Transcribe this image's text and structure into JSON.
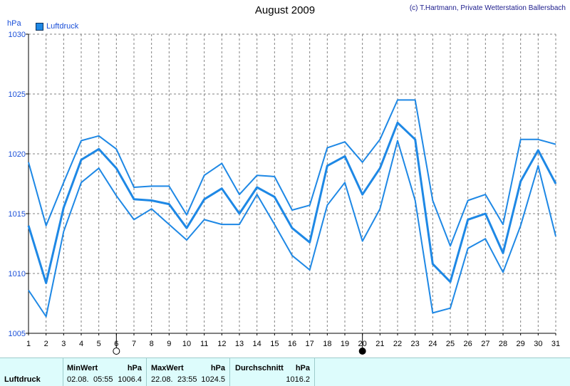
{
  "header": {
    "title": "August 2009",
    "copyright": "(c) T.Hartmann, Private Wetterstation Ballersbach",
    "unit": "hPa",
    "legend_label": "Luftdruck"
  },
  "colors": {
    "series": "#1e88e5",
    "grid": "#808080",
    "stats_bg": "#ddfcfc"
  },
  "moon_phases": [
    {
      "day": 6,
      "phase": "full-moon"
    },
    {
      "day": 20,
      "phase": "new-moon"
    }
  ],
  "chart_data": {
    "type": "line",
    "title": "August 2009",
    "ylabel": "hPa",
    "x": [
      1,
      2,
      3,
      4,
      5,
      6,
      7,
      8,
      9,
      10,
      11,
      12,
      13,
      14,
      15,
      16,
      17,
      18,
      19,
      20,
      21,
      22,
      23,
      24,
      25,
      26,
      27,
      28,
      29,
      30,
      31
    ],
    "x_tick_labels": [
      "1",
      "2",
      "3",
      "4",
      "5",
      "6",
      "7",
      "8",
      "9",
      "10",
      "11",
      "12",
      "13",
      "14",
      "15",
      "16",
      "17",
      "18",
      "19",
      "20",
      "21",
      "22",
      "23",
      "24",
      "25",
      "26",
      "27",
      "28",
      "29",
      "30",
      "31"
    ],
    "ylim": [
      1005,
      1030
    ],
    "y_ticks": [
      1005,
      1010,
      1015,
      1020,
      1025,
      1030
    ],
    "grid": true,
    "legend": "top-left",
    "series": [
      {
        "name": "Luftdruck",
        "role": "max",
        "values": [
          1019.3,
          1014.0,
          1017.6,
          1021.1,
          1021.5,
          1020.4,
          1017.2,
          1017.3,
          1017.3,
          1014.9,
          1018.2,
          1019.2,
          1016.6,
          1018.2,
          1018.1,
          1015.3,
          1015.7,
          1020.5,
          1021.0,
          1019.3,
          1021.2,
          1024.5,
          1024.5,
          1016.1,
          1012.3,
          1016.1,
          1016.6,
          1014.1,
          1021.2,
          1021.2,
          1020.8
        ]
      },
      {
        "name": "Luftdruck",
        "role": "avg",
        "values": [
          1014.0,
          1009.2,
          1015.5,
          1019.5,
          1020.4,
          1018.8,
          1016.2,
          1016.1,
          1015.8,
          1013.8,
          1016.2,
          1017.1,
          1015.0,
          1017.2,
          1016.4,
          1013.8,
          1012.6,
          1019.0,
          1019.8,
          1016.6,
          1018.8,
          1022.6,
          1021.2,
          1010.8,
          1009.3,
          1014.5,
          1015.0,
          1011.7,
          1017.7,
          1020.3,
          1017.5
        ]
      },
      {
        "name": "Luftdruck",
        "role": "min",
        "values": [
          1008.6,
          1006.4,
          1013.5,
          1017.6,
          1018.8,
          1016.5,
          1014.5,
          1015.4,
          1014.1,
          1012.8,
          1014.5,
          1014.1,
          1014.1,
          1016.6,
          1014.1,
          1011.5,
          1010.3,
          1015.7,
          1017.6,
          1012.7,
          1015.4,
          1021.1,
          1016.1,
          1006.7,
          1007.1,
          1012.1,
          1012.9,
          1010.1,
          1014.0,
          1019.0,
          1013.1
        ]
      }
    ]
  },
  "stats": {
    "row_label": "Luftdruck",
    "min": {
      "header": "MinWert",
      "unit": "hPa",
      "date": "02.08.",
      "time": "05:55",
      "value": "1006.4"
    },
    "max": {
      "header": "MaxWert",
      "unit": "hPa",
      "date": "22.08.",
      "time": "23:55",
      "value": "1024.5"
    },
    "avg": {
      "header": "Durchschnitt",
      "unit": "hPa",
      "value": "1016.2"
    }
  }
}
